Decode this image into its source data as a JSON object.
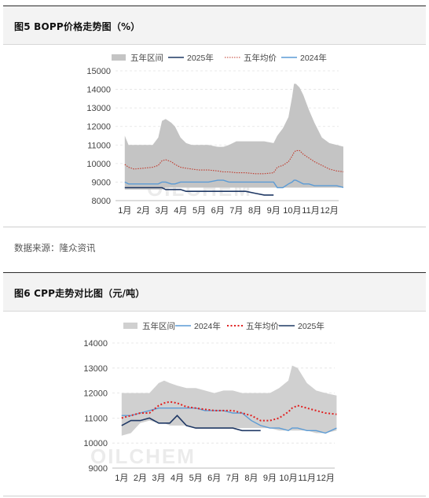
{
  "figure1": {
    "header": "图5 BOPP价格走势图（%）",
    "source": "数据来源：隆众资讯",
    "watermark": "OILCHEM",
    "colors": {
      "band": "#c4c4c4",
      "y2025": "#1f3864",
      "avg": "#c0392b",
      "y2024": "#5b9bd5"
    },
    "chart_data": {
      "type": "line",
      "categories": [
        "1月",
        "2月",
        "3月",
        "4月",
        "5月",
        "6月",
        "7月",
        "8月",
        "9月",
        "10月",
        "11月",
        "12月"
      ],
      "xlabel": "",
      "ylabel": "",
      "ylim": [
        8000,
        15000
      ],
      "yticks": [
        8000,
        9000,
        10000,
        11000,
        12000,
        13000,
        14000,
        15000
      ],
      "grid": true,
      "legend": "top",
      "x": [
        1,
        1.2,
        1.5,
        2,
        2.5,
        2.8,
        3,
        3.2,
        3.5,
        3.7,
        4,
        4.3,
        4.6,
        5,
        5.5,
        6,
        6.3,
        6.6,
        7,
        7.5,
        8,
        8.5,
        9,
        9.2,
        9.5,
        9.8,
        10,
        10.1,
        10.2,
        10.4,
        10.6,
        10.9,
        11.2,
        11.6,
        12,
        12.4,
        12.8
      ],
      "series": [
        {
          "name": "五年区间",
          "kind": "band",
          "upper": [
            11500,
            11000,
            11000,
            11000,
            11000,
            11400,
            12300,
            12400,
            12200,
            12000,
            11400,
            11100,
            11000,
            11000,
            11000,
            10900,
            10900,
            11000,
            11200,
            11200,
            11200,
            11200,
            11100,
            11500,
            11900,
            12500,
            13600,
            14300,
            14300,
            14100,
            13700,
            12900,
            12200,
            11400,
            11100,
            11000,
            10900
          ],
          "lower": [
            8600,
            8600,
            8600,
            8600,
            8600,
            8600,
            8600,
            8700,
            8700,
            8700,
            8700,
            8700,
            8700,
            8700,
            8700,
            8700,
            8700,
            8700,
            8700,
            8700,
            8700,
            8700,
            8700,
            8700,
            8700,
            8700,
            8700,
            8700,
            8700,
            8700,
            8700,
            8700,
            8700,
            8700,
            8700,
            8700,
            8700
          ]
        },
        {
          "name": "2025年",
          "kind": "line",
          "values": [
            8700,
            8700,
            8700,
            8700,
            8700,
            8700,
            8700,
            8600,
            8600,
            8600,
            8600,
            8500,
            8500,
            8500,
            8500,
            8500,
            8500,
            8500,
            8500,
            8500,
            8400,
            8300,
            8300,
            null,
            null,
            null,
            null,
            null,
            null,
            null,
            null,
            null,
            null,
            null,
            null,
            null,
            null
          ]
        },
        {
          "name": "五年均价",
          "kind": "dotted",
          "values": [
            9950,
            9800,
            9700,
            9750,
            9800,
            9900,
            10150,
            10200,
            10100,
            9950,
            9800,
            9750,
            9700,
            9650,
            9650,
            9600,
            9550,
            9550,
            9500,
            9500,
            9450,
            9450,
            9500,
            9800,
            9900,
            10100,
            10400,
            10600,
            10700,
            10700,
            10500,
            10300,
            10100,
            9900,
            9700,
            9600,
            9550
          ]
        },
        {
          "name": "2024年",
          "kind": "line",
          "values": [
            9000,
            8900,
            8900,
            8900,
            8900,
            8900,
            9000,
            9000,
            8900,
            8900,
            9000,
            9000,
            9000,
            9000,
            9000,
            9100,
            9100,
            9000,
            9000,
            9000,
            9000,
            9000,
            9000,
            8700,
            8700,
            8900,
            9000,
            9100,
            9100,
            9000,
            8900,
            8900,
            8800,
            8800,
            8800,
            8800,
            8700
          ]
        }
      ]
    }
  },
  "figure2": {
    "header": "图6 CPP走势对比图（元/吨）",
    "watermark": "OILCHEM",
    "colors": {
      "band": "#d0d0d0",
      "y2025": "#1f3864",
      "avg": "#e02020",
      "y2024": "#5b9bd5"
    },
    "chart_data": {
      "type": "line",
      "categories": [
        "1月",
        "2月",
        "3月",
        "4月",
        "5月",
        "6月",
        "7月",
        "8月",
        "9月",
        "10月",
        "11月",
        "12月"
      ],
      "xlabel": "",
      "ylabel": "",
      "ylim": [
        9000,
        14000
      ],
      "yticks": [
        9000,
        10000,
        11000,
        12000,
        13000,
        14000
      ],
      "grid": true,
      "legend": "top",
      "x": [
        1,
        1.5,
        2,
        2.5,
        3,
        3.3,
        3.6,
        4,
        4.5,
        5,
        5.5,
        6,
        6.5,
        7,
        7.5,
        8,
        8.5,
        9,
        9.5,
        10,
        10.2,
        10.5,
        11,
        11.5,
        12,
        12.6
      ],
      "series": [
        {
          "name": "五年区间",
          "kind": "band",
          "upper": [
            12000,
            12000,
            12000,
            12000,
            12400,
            12500,
            12400,
            12300,
            12200,
            12200,
            12100,
            12000,
            12100,
            12100,
            12000,
            12000,
            12000,
            12000,
            12200,
            12500,
            13100,
            13000,
            12400,
            12100,
            12000,
            11900
          ],
          "lower": [
            10300,
            10400,
            10800,
            10900,
            10800,
            10800,
            10700,
            10700,
            10700,
            10600,
            10600,
            10600,
            10600,
            10600,
            10600,
            10600,
            10600,
            10600,
            10500,
            10500,
            10500,
            10500,
            10500,
            10400,
            10400,
            10500
          ]
        },
        {
          "name": "2024年",
          "kind": "line",
          "values": [
            11100,
            11100,
            11200,
            11300,
            11400,
            11400,
            11400,
            11400,
            11400,
            11400,
            11300,
            11300,
            11300,
            11200,
            11200,
            10900,
            10700,
            10600,
            10600,
            10500,
            10600,
            10600,
            10500,
            10500,
            10400,
            10600
          ]
        },
        {
          "name": "五年均价",
          "kind": "dotted",
          "values": [
            11000,
            11100,
            11200,
            11200,
            11500,
            11600,
            11650,
            11600,
            11450,
            11400,
            11350,
            11300,
            11300,
            11300,
            11200,
            11100,
            10900,
            10900,
            11000,
            11250,
            11400,
            11500,
            11400,
            11300,
            11200,
            11150
          ]
        },
        {
          "name": "2025年",
          "kind": "line",
          "values": [
            10700,
            10900,
            10900,
            11000,
            10800,
            10800,
            10800,
            11100,
            10700,
            10600,
            10600,
            10600,
            10600,
            10600,
            10500,
            10500,
            10500,
            null,
            null,
            null,
            null,
            null,
            null,
            null,
            null,
            null
          ]
        }
      ]
    }
  }
}
